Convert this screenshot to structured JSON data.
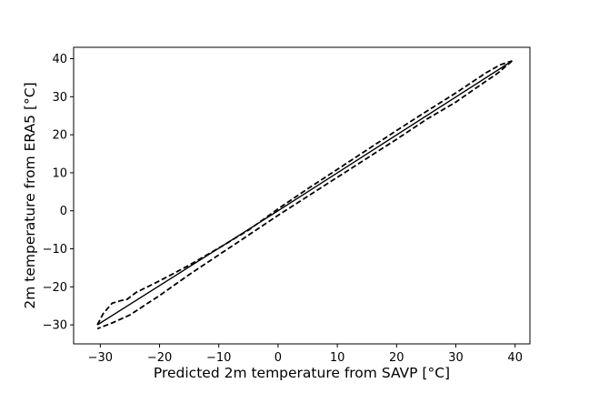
{
  "chart_data": {
    "type": "line",
    "title": "",
    "xlabel": "Predicted 2m temperature from SAVP [°C]",
    "ylabel": "2m temperature from ERA5 [°C]",
    "xlim": [
      -34.5,
      42.5
    ],
    "ylim": [
      -35,
      43
    ],
    "xticks": [
      -30,
      -20,
      -10,
      0,
      10,
      20,
      30,
      40
    ],
    "yticks": [
      -30,
      -20,
      -10,
      0,
      10,
      20,
      30,
      40
    ],
    "xtick_labels": [
      "−30",
      "−20",
      "−10",
      "0",
      "10",
      "20",
      "30",
      "40"
    ],
    "ytick_labels": [
      "−30",
      "−20",
      "−10",
      "0",
      "10",
      "20",
      "30",
      "40"
    ],
    "grid": false,
    "legend": "none",
    "series": [
      {
        "style": "dashed",
        "color": "#000000",
        "x": [
          -30.5,
          -29.5,
          -28,
          -26.5,
          -25.5,
          -24,
          -21,
          -18,
          -15,
          -10,
          -5,
          0,
          5,
          10,
          15,
          20,
          25,
          30,
          35,
          37.5,
          39.5
        ],
        "y": [
          -30.0,
          -27.0,
          -24.3,
          -23.6,
          -23.3,
          -21.5,
          -19.2,
          -16.8,
          -14.3,
          -9.8,
          -5.1,
          0.5,
          5.8,
          10.9,
          16.0,
          21.1,
          26.1,
          31.0,
          36.2,
          38.4,
          39.4
        ]
      },
      {
        "style": "solid",
        "color": "#000000",
        "x": [
          -30.5,
          0,
          39.5
        ],
        "y": [
          -30.0,
          0.0,
          39.4
        ]
      },
      {
        "style": "dashed",
        "color": "#000000",
        "x": [
          39.5,
          37,
          35,
          30,
          25,
          20,
          15,
          10,
          5,
          0,
          -5,
          -10,
          -15,
          -20,
          -25,
          -28,
          -30.5
        ],
        "y": [
          39.4,
          36.1,
          34.0,
          28.6,
          24.0,
          18.8,
          13.8,
          8.8,
          3.8,
          -1.2,
          -6.4,
          -11.6,
          -16.8,
          -22.3,
          -27.4,
          -29.5,
          -31.0
        ]
      }
    ]
  }
}
